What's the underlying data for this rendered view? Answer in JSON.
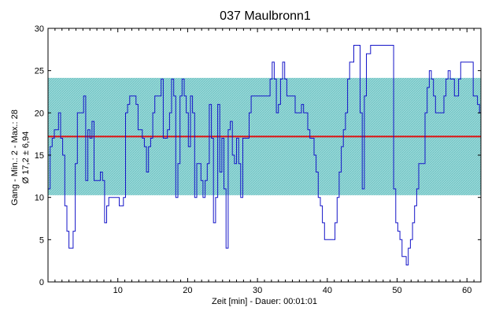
{
  "chart_data": {
    "type": "line",
    "title": "037 Maulbronn1",
    "xlabel": "Zeit [min] - Dauer: 00:01:01",
    "ylabel": "Gang - Min.: 2 - Max.: 28",
    "ylabel2": "Ø 17,2 ± 6,94",
    "xlim": [
      0,
      62
    ],
    "ylim": [
      0,
      30
    ],
    "xticks": [
      10,
      20,
      30,
      40,
      50,
      60
    ],
    "yticks": [
      0,
      5,
      10,
      15,
      20,
      25,
      30
    ],
    "grid": false,
    "mean": 17.2,
    "std": 6.94,
    "band": [
      10.26,
      24.14
    ],
    "colors": {
      "line": "#1414c8",
      "mean": "#e01010",
      "band": "#86d0d0",
      "band_hatch": "#5fbcbc"
    },
    "series": [
      {
        "x": [
          0,
          0.3,
          0.6,
          0.9,
          1.2,
          1.5,
          1.8,
          2.1,
          2.4,
          2.7,
          3.0,
          3.3,
          3.6,
          3.9,
          4.2,
          4.5,
          4.8,
          5.1,
          5.4,
          5.7,
          6.0,
          6.3,
          6.6,
          6.9,
          7.2,
          7.5,
          7.8,
          8.1,
          8.4,
          8.7,
          9.0,
          9.3,
          9.6,
          9.9,
          10.2,
          10.5,
          10.8,
          11.1,
          11.4,
          11.7,
          12.0,
          12.3,
          12.6,
          12.9,
          13.2,
          13.5,
          13.8,
          14.1,
          14.4,
          14.7,
          15.0,
          15.3,
          15.6,
          15.9,
          16.2,
          16.5,
          16.8,
          17.1,
          17.4,
          17.7,
          18.0,
          18.3,
          18.6,
          18.9,
          19.2,
          19.5,
          19.8,
          20.1,
          20.4,
          20.7,
          21.0,
          21.3,
          21.6,
          21.9,
          22.2,
          22.5,
          22.8,
          23.1,
          23.4,
          23.7,
          24.0,
          24.3,
          24.6,
          24.9,
          25.2,
          25.5,
          25.8,
          26.1,
          26.4,
          26.7,
          27.0,
          27.3,
          27.6,
          27.9,
          28.2,
          28.5,
          28.8,
          29.1,
          29.4,
          29.7,
          30.0,
          30.3,
          30.6,
          30.9,
          31.2,
          31.5,
          31.8,
          32.1,
          32.4,
          32.7,
          33.0,
          33.3,
          33.6,
          33.9,
          34.2,
          34.5,
          34.8,
          35.1,
          35.4,
          35.7,
          36.0,
          36.3,
          36.6,
          36.9,
          37.2,
          37.5,
          37.8,
          38.1,
          38.4,
          38.7,
          39.0,
          39.3,
          39.6,
          39.9,
          40.2,
          40.5,
          40.8,
          41.1,
          41.4,
          41.7,
          42.0,
          42.3,
          42.6,
          42.9,
          43.2,
          43.5,
          43.8,
          44.1,
          44.4,
          44.7,
          45.0,
          45.3,
          45.6,
          45.9,
          46.2,
          46.5,
          46.8,
          47.1,
          47.4,
          47.7,
          48.0,
          48.3,
          48.6,
          48.9,
          49.2,
          49.5,
          49.8,
          50.1,
          50.4,
          50.7,
          51.0,
          51.3,
          51.6,
          51.9,
          52.2,
          52.5,
          52.8,
          53.1,
          53.4,
          53.7,
          54.0,
          54.3,
          54.6,
          54.9,
          55.2,
          55.5,
          55.8,
          56.1,
          56.4,
          56.7,
          57.0,
          57.3,
          57.6,
          57.9,
          58.2,
          58.5,
          58.8,
          59.1,
          59.4,
          59.7,
          60.0,
          60.3,
          60.6,
          60.9,
          61.2,
          61.5,
          61.8
        ],
        "values": [
          11,
          16,
          17,
          18,
          18,
          20,
          17,
          15,
          9,
          6,
          4,
          4,
          6,
          14,
          20,
          20,
          20,
          22,
          12,
          18,
          17,
          19,
          12,
          12,
          12,
          13,
          12,
          7,
          9,
          10,
          10,
          10,
          10,
          10,
          9,
          9,
          10,
          20,
          21,
          22,
          22,
          22,
          21,
          18,
          18,
          17,
          16,
          13,
          16,
          17,
          20,
          22,
          22,
          22,
          24,
          17,
          17,
          18,
          20,
          24,
          22,
          10,
          14,
          22,
          24,
          22,
          20,
          16,
          22,
          20,
          10,
          14,
          14,
          12,
          10,
          12,
          14,
          21,
          17,
          7,
          10,
          21,
          13,
          17,
          11,
          4,
          18,
          19,
          15,
          14,
          17,
          14,
          10,
          17,
          17,
          17,
          20,
          22,
          22,
          22,
          22,
          22,
          22,
          22,
          22,
          22,
          24,
          26,
          24,
          20,
          21,
          24,
          26,
          24,
          22,
          22,
          22,
          22,
          20,
          20,
          20,
          21,
          20,
          20,
          18,
          17,
          17,
          15,
          13,
          10,
          9,
          7,
          5,
          5,
          5,
          5,
          5,
          7,
          10,
          13,
          16,
          18,
          20,
          24,
          26,
          26,
          28,
          28,
          28,
          20,
          11,
          22,
          27,
          27,
          28,
          28,
          28,
          28,
          28,
          28,
          28,
          28,
          28,
          28,
          28,
          11,
          7,
          6,
          5,
          3,
          3,
          2,
          4,
          5,
          7,
          9,
          11,
          14,
          14,
          14,
          20,
          23,
          25,
          24,
          22,
          20,
          20,
          20,
          20,
          22,
          24,
          25,
          24,
          24,
          22,
          22,
          24,
          26,
          26,
          26,
          26,
          26,
          26,
          22,
          22,
          21,
          20
        ]
      }
    ]
  }
}
